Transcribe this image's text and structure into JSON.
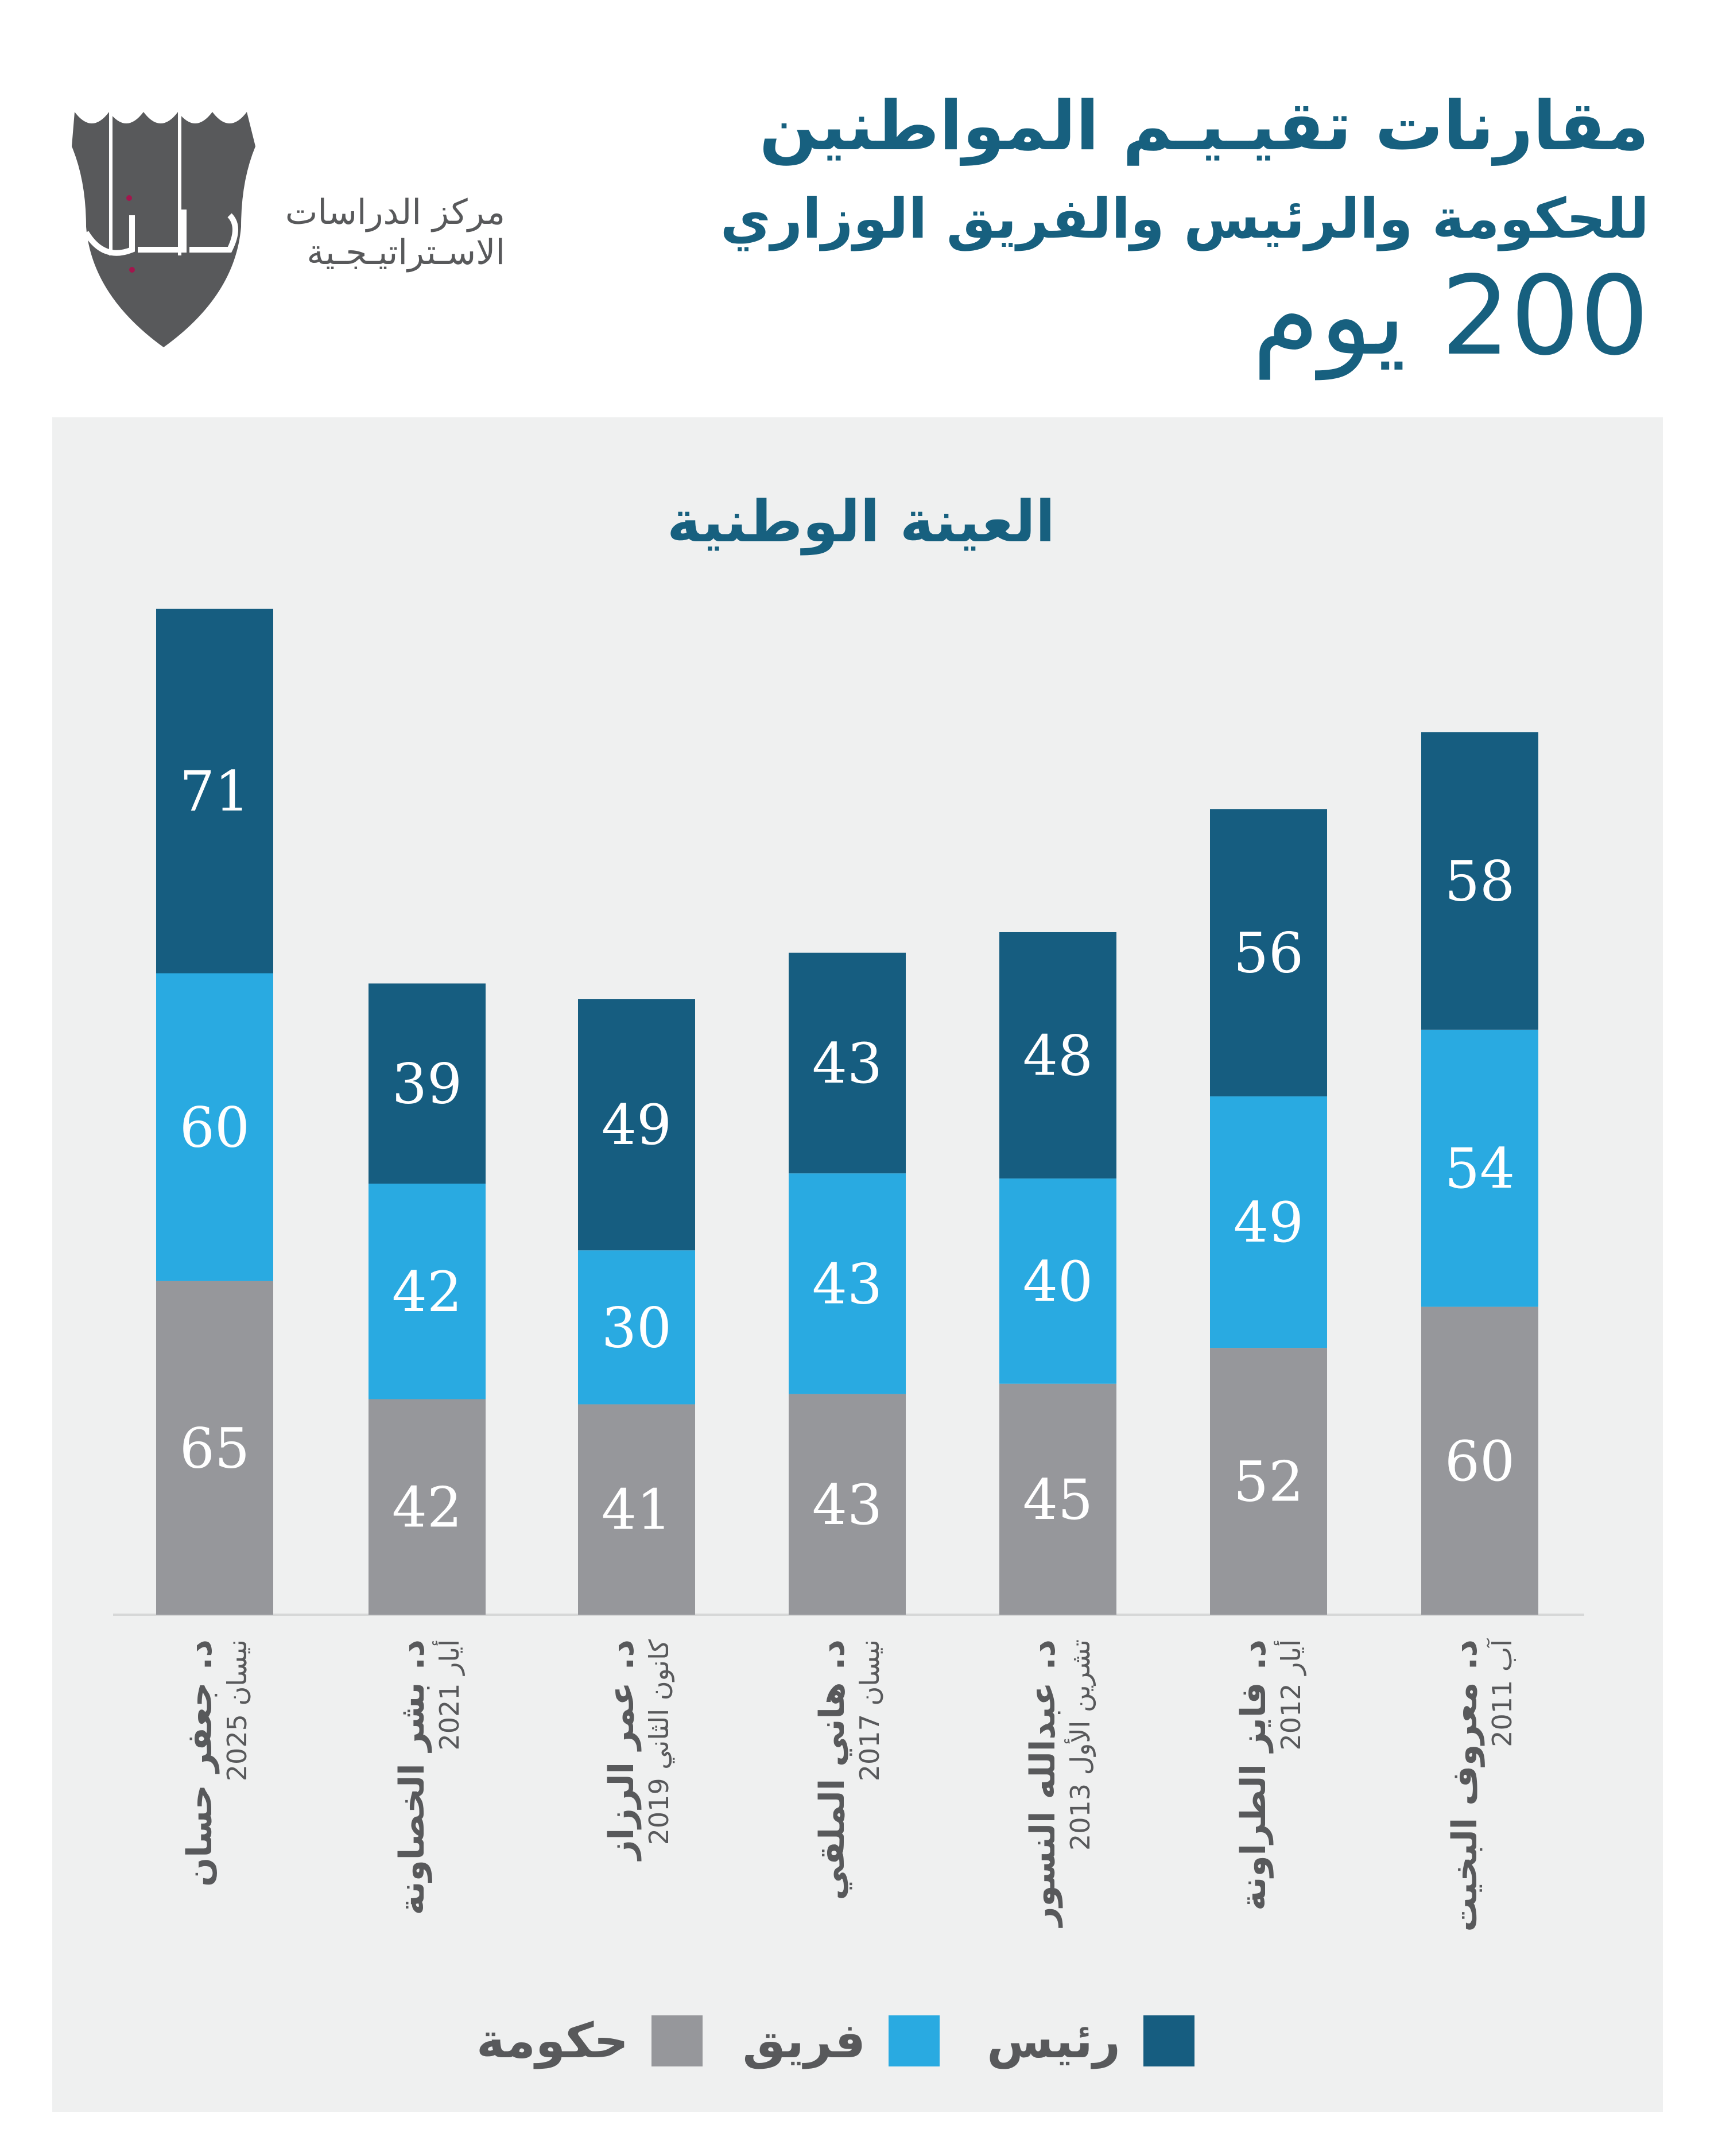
{
  "header": {
    "title_line1": "مقارنات تقيـيـم المواطنين",
    "title_line2": "للحكومة والرئيس والفريق الوزاري",
    "title_line3": "200 يوم"
  },
  "logo": {
    "line1": "مركز الدراسات",
    "line2": "الاسـتراتيـجـية",
    "mark_text": "استراتيجي"
  },
  "colors": {
    "president": "#165d80",
    "team": "#29aae1",
    "government": "#96979b",
    "title": "#17607f"
  },
  "chart_data": {
    "type": "bar",
    "stacked": true,
    "title": "العينة الوطنية",
    "categories": [
      {
        "name": "د. جعفر حسان",
        "date": "نيسان 2025"
      },
      {
        "name": "د. بشر الخصاونة",
        "date": "أيار 2021"
      },
      {
        "name": "د. عمر الرزاز",
        "date": "كانون الثاني 2019"
      },
      {
        "name": "د. هاني الملقي",
        "date": "نيسان 2017"
      },
      {
        "name": "د. عبدالله النسور",
        "date": "تشرين الأول 2013"
      },
      {
        "name": "د. فايز الطراونة",
        "date": "أيار 2012"
      },
      {
        "name": "د. معروف البخيت",
        "date": "آب 2011"
      }
    ],
    "series": [
      {
        "name": "حكومة",
        "key": "government",
        "values": [
          65,
          42,
          41,
          43,
          45,
          52,
          60
        ]
      },
      {
        "name": "فريق",
        "key": "team",
        "values": [
          60,
          42,
          30,
          43,
          40,
          49,
          54
        ]
      },
      {
        "name": "رئيس",
        "key": "president",
        "values": [
          71,
          39,
          49,
          43,
          48,
          56,
          58
        ]
      }
    ],
    "legend": [
      "رئيس",
      "فريق",
      "حكومة"
    ],
    "legend_placement": "bottom",
    "grid": false
  }
}
